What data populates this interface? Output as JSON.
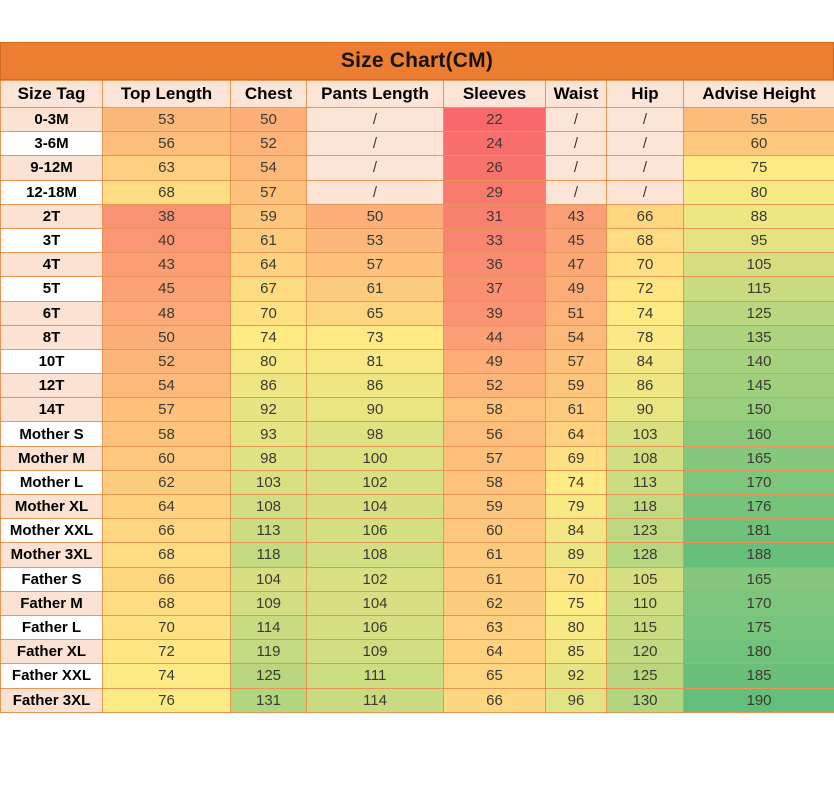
{
  "chart_data": {
    "type": "table",
    "title": "Size Chart(CM)",
    "columns": [
      "Size Tag",
      "Top Length",
      "Chest",
      "Pants Length",
      "Sleeves",
      "Waist",
      "Hip",
      "Advise Height"
    ],
    "na_symbol": "/",
    "rows": [
      {
        "tag": "0-3M",
        "tagBg": "pink",
        "values": [
          "53",
          "50",
          "/",
          "22",
          "/",
          "/",
          "55"
        ]
      },
      {
        "tag": "3-6M",
        "tagBg": "white",
        "values": [
          "56",
          "52",
          "/",
          "24",
          "/",
          "/",
          "60"
        ]
      },
      {
        "tag": "9-12M",
        "tagBg": "pink",
        "values": [
          "63",
          "54",
          "/",
          "26",
          "/",
          "/",
          "75"
        ]
      },
      {
        "tag": "12-18M",
        "tagBg": "white",
        "values": [
          "68",
          "57",
          "/",
          "29",
          "/",
          "/",
          "80"
        ]
      },
      {
        "tag": "2T",
        "tagBg": "pink",
        "values": [
          "38",
          "59",
          "50",
          "31",
          "43",
          "66",
          "88"
        ]
      },
      {
        "tag": "3T",
        "tagBg": "white",
        "values": [
          "40",
          "61",
          "53",
          "33",
          "45",
          "68",
          "95"
        ]
      },
      {
        "tag": "4T",
        "tagBg": "pink",
        "values": [
          "43",
          "64",
          "57",
          "36",
          "47",
          "70",
          "105"
        ]
      },
      {
        "tag": "5T",
        "tagBg": "white",
        "values": [
          "45",
          "67",
          "61",
          "37",
          "49",
          "72",
          "115"
        ]
      },
      {
        "tag": "6T",
        "tagBg": "pink",
        "values": [
          "48",
          "70",
          "65",
          "39",
          "51",
          "74",
          "125"
        ]
      },
      {
        "tag": "8T",
        "tagBg": "pink",
        "values": [
          "50",
          "74",
          "73",
          "44",
          "54",
          "78",
          "135"
        ]
      },
      {
        "tag": "10T",
        "tagBg": "white",
        "values": [
          "52",
          "80",
          "81",
          "49",
          "57",
          "84",
          "140"
        ]
      },
      {
        "tag": "12T",
        "tagBg": "pink",
        "values": [
          "54",
          "86",
          "86",
          "52",
          "59",
          "86",
          "145"
        ]
      },
      {
        "tag": "14T",
        "tagBg": "pink",
        "values": [
          "57",
          "92",
          "90",
          "58",
          "61",
          "90",
          "150"
        ]
      },
      {
        "tag": "Mother S",
        "tagBg": "white",
        "values": [
          "58",
          "93",
          "98",
          "56",
          "64",
          "103",
          "160"
        ]
      },
      {
        "tag": "Mother M",
        "tagBg": "pink",
        "values": [
          "60",
          "98",
          "100",
          "57",
          "69",
          "108",
          "165"
        ]
      },
      {
        "tag": "Mother L",
        "tagBg": "white",
        "values": [
          "62",
          "103",
          "102",
          "58",
          "74",
          "113",
          "170"
        ]
      },
      {
        "tag": "Mother XL",
        "tagBg": "pink",
        "values": [
          "64",
          "108",
          "104",
          "59",
          "79",
          "118",
          "176"
        ]
      },
      {
        "tag": "Mother XXL",
        "tagBg": "white",
        "values": [
          "66",
          "113",
          "106",
          "60",
          "84",
          "123",
          "181"
        ]
      },
      {
        "tag": "Mother 3XL",
        "tagBg": "pink",
        "values": [
          "68",
          "118",
          "108",
          "61",
          "89",
          "128",
          "188"
        ]
      },
      {
        "tag": "Father S",
        "tagBg": "white",
        "values": [
          "66",
          "104",
          "102",
          "61",
          "70",
          "105",
          "165"
        ]
      },
      {
        "tag": "Father M",
        "tagBg": "pink",
        "values": [
          "68",
          "109",
          "104",
          "62",
          "75",
          "110",
          "170"
        ]
      },
      {
        "tag": "Father L",
        "tagBg": "white",
        "values": [
          "70",
          "114",
          "106",
          "63",
          "80",
          "115",
          "175"
        ]
      },
      {
        "tag": "Father XL",
        "tagBg": "pink",
        "values": [
          "72",
          "119",
          "109",
          "64",
          "85",
          "120",
          "180"
        ]
      },
      {
        "tag": "Father XXL",
        "tagBg": "white",
        "values": [
          "74",
          "125",
          "111",
          "65",
          "92",
          "125",
          "185"
        ]
      },
      {
        "tag": "Father 3XL",
        "tagBg": "pink",
        "values": [
          "76",
          "131",
          "114",
          "66",
          "96",
          "130",
          "190"
        ]
      }
    ],
    "heatmap": {
      "min_value": 22,
      "mid_value": 74,
      "max_value": 190,
      "min_color": "#F8696B",
      "mid_color": "#FFEB84",
      "max_color": "#63BE7B"
    }
  },
  "colors": {
    "title_bg": "#ED7D31",
    "header_bg": "#FCE4D6",
    "na_bg": "#FCE4D6",
    "tag_pink": "#FBE2D2",
    "tag_white": "#FFFFFF"
  }
}
